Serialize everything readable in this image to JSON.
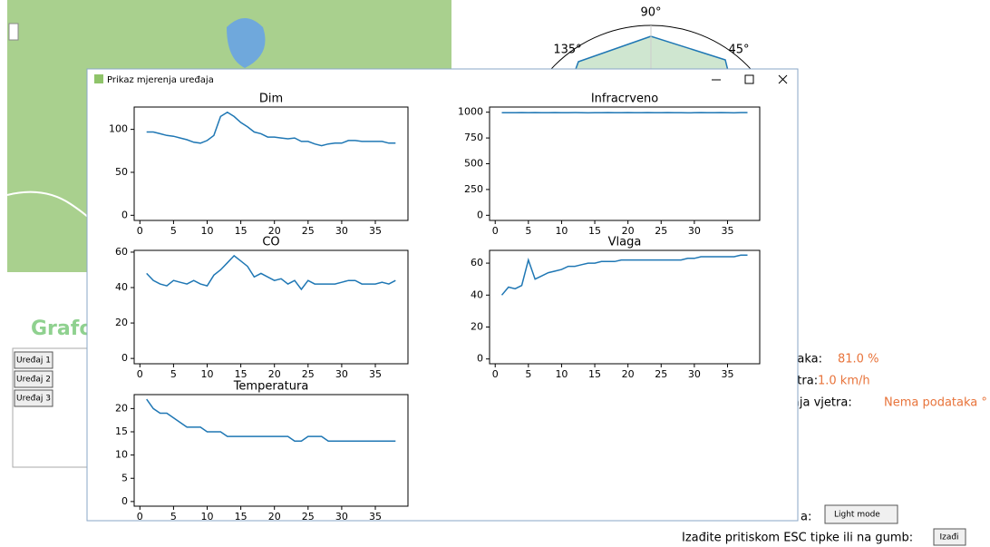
{
  "background": {
    "heading": "Grafo",
    "devices": [
      "Uređaj 1",
      "Uređaj 2",
      "Uređaj 3"
    ],
    "polar_labels": [
      "90°",
      "135°",
      "45°"
    ],
    "humidity_label": "t zraka:",
    "humidity_value": "81.0 %",
    "wind_label": "vjetra:",
    "wind_value": "1.0 km/h",
    "direction_label": "irenja vjetra:",
    "direction_value": "Nema podataka °",
    "mode_label": "a:",
    "mode_button": "Light mode",
    "exit_label": "Izađite pritiskom ESC tipke ili na gumb:",
    "exit_button": "Izađi"
  },
  "window": {
    "title": "Prikaz mjerenja uređaja"
  },
  "chart_data": [
    {
      "type": "line",
      "title": "Dim",
      "color": "#1f77b4",
      "x": [
        1,
        2,
        3,
        4,
        5,
        6,
        7,
        8,
        9,
        10,
        11,
        12,
        13,
        14,
        15,
        16,
        17,
        18,
        19,
        20,
        21,
        22,
        23,
        24,
        25,
        26,
        27,
        28,
        29,
        30,
        31,
        32,
        33,
        34,
        35,
        36,
        37,
        38
      ],
      "values": [
        97,
        97,
        95,
        93,
        92,
        90,
        88,
        85,
        84,
        87,
        93,
        115,
        120,
        115,
        108,
        103,
        97,
        95,
        91,
        91,
        90,
        89,
        90,
        86,
        86,
        83,
        81,
        83,
        84,
        84,
        87,
        87,
        86,
        86,
        86,
        86,
        84,
        84
      ],
      "xlim": [
        -0.85,
        39.85
      ],
      "ylim": [
        -6,
        126
      ],
      "xticks": [
        0,
        5,
        10,
        15,
        20,
        25,
        30,
        35
      ],
      "yticks": [
        0,
        50,
        100
      ]
    },
    {
      "type": "line",
      "title": "Infracrveno",
      "color": "#1f77b4",
      "x": [
        1,
        2,
        3,
        4,
        5,
        6,
        7,
        8,
        9,
        10,
        11,
        12,
        13,
        14,
        15,
        16,
        17,
        18,
        19,
        20,
        21,
        22,
        23,
        24,
        25,
        26,
        27,
        28,
        29,
        30,
        31,
        32,
        33,
        34,
        35,
        36,
        37,
        38
      ],
      "values": [
        995,
        995,
        995,
        996,
        995,
        996,
        995,
        995,
        996,
        995,
        995,
        996,
        995,
        994,
        995,
        995,
        996,
        995,
        995,
        996,
        995,
        995,
        996,
        995,
        995,
        996,
        995,
        995,
        994,
        995,
        996,
        995,
        995,
        996,
        995,
        994,
        996,
        996
      ],
      "xlim": [
        -0.85,
        39.85
      ],
      "ylim": [
        -50,
        1050
      ],
      "xticks": [
        0,
        5,
        10,
        15,
        20,
        25,
        30,
        35
      ],
      "yticks": [
        0,
        250,
        500,
        750,
        1000
      ]
    },
    {
      "type": "line",
      "title": "CO",
      "color": "#1f77b4",
      "x": [
        1,
        2,
        3,
        4,
        5,
        6,
        7,
        8,
        9,
        10,
        11,
        12,
        13,
        14,
        15,
        16,
        17,
        18,
        19,
        20,
        21,
        22,
        23,
        24,
        25,
        26,
        27,
        28,
        29,
        30,
        31,
        32,
        33,
        34,
        35,
        36,
        37,
        38
      ],
      "values": [
        48,
        44,
        42,
        41,
        44,
        43,
        42,
        44,
        42,
        41,
        47,
        50,
        54,
        58,
        55,
        52,
        46,
        48,
        46,
        44,
        45,
        42,
        44,
        39,
        44,
        42,
        42,
        42,
        42,
        43,
        44,
        44,
        42,
        42,
        42,
        43,
        42,
        44
      ],
      "xlim": [
        -0.85,
        39.85
      ],
      "ylim": [
        -3,
        61
      ],
      "xticks": [
        0,
        5,
        10,
        15,
        20,
        25,
        30,
        35
      ],
      "yticks": [
        0,
        20,
        40,
        60
      ]
    },
    {
      "type": "line",
      "title": "Vlaga",
      "color": "#1f77b4",
      "x": [
        1,
        2,
        3,
        4,
        5,
        6,
        7,
        8,
        9,
        10,
        11,
        12,
        13,
        14,
        15,
        16,
        17,
        18,
        19,
        20,
        21,
        22,
        23,
        24,
        25,
        26,
        27,
        28,
        29,
        30,
        31,
        32,
        33,
        34,
        35,
        36,
        37,
        38
      ],
      "values": [
        40,
        45,
        44,
        46,
        62,
        50,
        52,
        54,
        55,
        56,
        58,
        58,
        59,
        60,
        60,
        61,
        61,
        61,
        62,
        62,
        62,
        62,
        62,
        62,
        62,
        62,
        62,
        62,
        63,
        63,
        64,
        64,
        64,
        64,
        64,
        64,
        65,
        65
      ],
      "xlim": [
        -0.85,
        39.85
      ],
      "ylim": [
        -3,
        68
      ],
      "xticks": [
        0,
        5,
        10,
        15,
        20,
        25,
        30,
        35
      ],
      "yticks": [
        0,
        20,
        40,
        60
      ]
    },
    {
      "type": "line",
      "title": "Temperatura",
      "color": "#1f77b4",
      "x": [
        1,
        2,
        3,
        4,
        5,
        6,
        7,
        8,
        9,
        10,
        11,
        12,
        13,
        14,
        15,
        16,
        17,
        18,
        19,
        20,
        21,
        22,
        23,
        24,
        25,
        26,
        27,
        28,
        29,
        30,
        31,
        32,
        33,
        34,
        35,
        36,
        37,
        38
      ],
      "values": [
        22,
        20,
        19,
        19,
        18,
        17,
        16,
        16,
        16,
        15,
        15,
        15,
        14,
        14,
        14,
        14,
        14,
        14,
        14,
        14,
        14,
        14,
        13,
        13,
        14,
        14,
        14,
        13,
        13,
        13,
        13,
        13,
        13,
        13,
        13,
        13,
        13,
        13
      ],
      "xlim": [
        -0.85,
        39.85
      ],
      "ylim": [
        -1,
        23
      ],
      "xticks": [
        0,
        5,
        10,
        15,
        20,
        25,
        30,
        35
      ],
      "yticks": [
        0,
        5,
        10,
        15,
        20
      ]
    }
  ]
}
